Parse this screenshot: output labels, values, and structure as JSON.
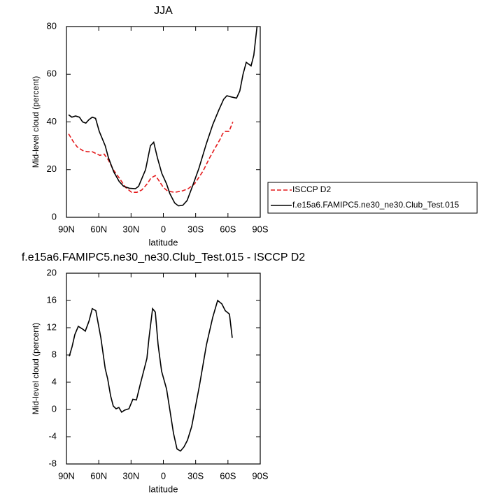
{
  "chart_data": [
    {
      "type": "line",
      "title": "JJA",
      "x_label": "latitude",
      "y_label": "Mid-level cloud (percent)",
      "xlim": [
        90,
        -90
      ],
      "ylim": [
        0,
        80
      ],
      "xticks": [
        {
          "value": 90,
          "label": "90N"
        },
        {
          "value": 60,
          "label": "60N"
        },
        {
          "value": 30,
          "label": "30N"
        },
        0,
        {
          "value": -30,
          "label": "30S"
        },
        {
          "value": -60,
          "label": "60S"
        },
        {
          "value": -90,
          "label": "90S"
        }
      ],
      "yticks": [
        0,
        20,
        40,
        60,
        80
      ],
      "legend": "outside-right",
      "series": [
        {
          "name": "ISCCP D2",
          "color": "#e41a1c",
          "line_style": "dashed",
          "x": [
            88,
            84,
            80,
            75,
            70.5,
            66,
            61.5,
            59,
            55,
            51,
            46.5,
            41,
            35,
            29.5,
            24.5,
            20,
            15,
            11.5,
            7.5,
            5,
            0,
            -4,
            -10.5,
            -17,
            -23,
            -29,
            -37,
            -43,
            -48,
            -53,
            -55,
            -57.5,
            -61,
            -64.5
          ],
          "values": [
            35,
            32,
            29.5,
            28,
            27.5,
            27.5,
            26.5,
            26,
            26.5,
            24,
            20,
            16.5,
            12.5,
            10.5,
            10.5,
            11.5,
            14,
            16.5,
            17.5,
            16,
            12.5,
            11,
            10.5,
            11,
            12,
            14,
            19.5,
            25,
            29,
            33,
            35,
            36,
            36,
            40
          ]
        },
        {
          "name": "f.e15a6.FAMIPC5.ne30_ne30.Club_Test.015",
          "color": "#000000",
          "line_style": "solid",
          "x": [
            88,
            85,
            81.5,
            78,
            75,
            72,
            69,
            66,
            63,
            59.5,
            54,
            51,
            46,
            41,
            37,
            31.5,
            26,
            23,
            16.5,
            12,
            9,
            5.5,
            1.5,
            -3,
            -6,
            -10.5,
            -14,
            -18,
            -22,
            -27,
            -33,
            -40,
            -46,
            -51.5,
            -56,
            -59,
            -63,
            -68,
            -71,
            -74,
            -77,
            -81.5,
            -84,
            -87
          ],
          "values": [
            43,
            42,
            42.5,
            42,
            40,
            39.5,
            41,
            42,
            41.5,
            36,
            30,
            25,
            19,
            15,
            13,
            12.2,
            12,
            13,
            20,
            30,
            31.5,
            25,
            18.5,
            14,
            10,
            6,
            4.8,
            5,
            7,
            13,
            20.5,
            31,
            39,
            45,
            49.5,
            51,
            50.5,
            50,
            53,
            60,
            65,
            63.5,
            68,
            80
          ]
        }
      ]
    },
    {
      "type": "line",
      "title": "f.e15a6.FAMIPC5.ne30_ne30.Club_Test.015 - ISCCP D2",
      "x_label": "latitude",
      "y_label": "Mid-level cloud (percent)",
      "xlim": [
        90,
        -90
      ],
      "ylim": [
        -8,
        20
      ],
      "xticks": [
        {
          "value": 90,
          "label": "90N"
        },
        {
          "value": 60,
          "label": "60N"
        },
        {
          "value": 30,
          "label": "30N"
        },
        0,
        {
          "value": -30,
          "label": "30S"
        },
        {
          "value": -60,
          "label": "60S"
        },
        {
          "value": -90,
          "label": "90S"
        }
      ],
      "yticks": [
        -8,
        -4,
        0,
        4,
        8,
        12,
        16,
        20
      ],
      "series": [
        {
          "color": "#000000",
          "line_style": "solid",
          "x": [
            87.4,
            84.8,
            82.2,
            79,
            75,
            72.5,
            69,
            66,
            62.7,
            58,
            54,
            51.7,
            49,
            46.5,
            43.9,
            41.3,
            38.7,
            36,
            32,
            28.3,
            25,
            21.8,
            18.5,
            15.3,
            13.3,
            10,
            7.5,
            4.9,
            1.6,
            -3,
            -6,
            -9.4,
            -12.7,
            -15.9,
            -19.2,
            -22.4,
            -26.3,
            -33.5,
            -40,
            -45.8,
            -50.4,
            -54.3,
            -57.5,
            -61.4,
            -64
          ],
          "values": [
            7.8,
            9.2,
            11,
            12.2,
            11.8,
            11.5,
            13,
            14.8,
            14.5,
            10.5,
            6,
            4.5,
            2,
            0.5,
            0.1,
            0.3,
            -0.4,
            -0.1,
            0.1,
            1.5,
            1.4,
            3.5,
            5.5,
            7.5,
            10.5,
            14.8,
            14.3,
            9.5,
            5.6,
            3,
            0,
            -3.5,
            -5.8,
            -6.1,
            -5.5,
            -4.5,
            -2.5,
            3.5,
            9.5,
            13.5,
            16,
            15.5,
            14.5,
            14,
            10.5
          ]
        }
      ]
    }
  ]
}
